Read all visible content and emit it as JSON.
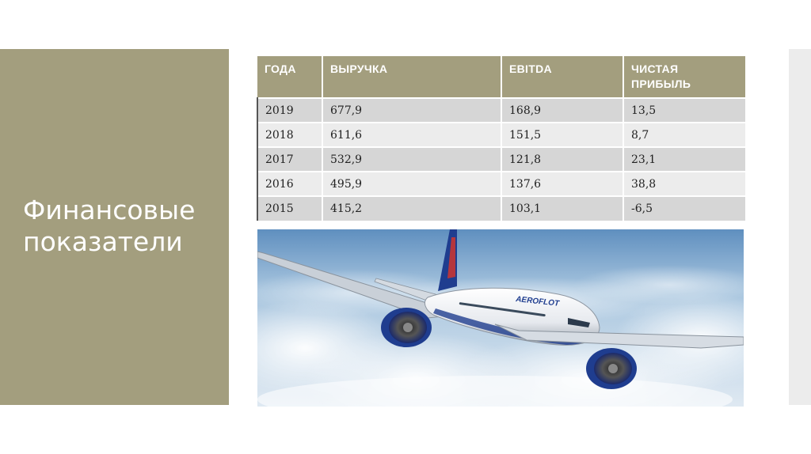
{
  "slide": {
    "title": "Финансовые показатели"
  },
  "table": {
    "headers": [
      "ГОДА",
      "ВЫРУЧКА",
      "EBITDA",
      "ЧИСТАЯ ПРИБЫЛЬ"
    ],
    "rows": [
      [
        "2019",
        "677,9",
        "168,9",
        "13,5"
      ],
      [
        "2018",
        "611,6",
        "151,5",
        "8,7"
      ],
      [
        "2017",
        "532,9",
        "121,8",
        "23,1"
      ],
      [
        "2016",
        "495,9",
        "137,6",
        "38,8"
      ],
      [
        "2015",
        "415,2",
        "103,1",
        "-6,5"
      ]
    ]
  },
  "photo": {
    "livery_text": "AEROFLOT"
  },
  "colors": {
    "accent": "#a39e7e",
    "row_dark": "#d6d6d6",
    "row_light": "#ececec"
  }
}
